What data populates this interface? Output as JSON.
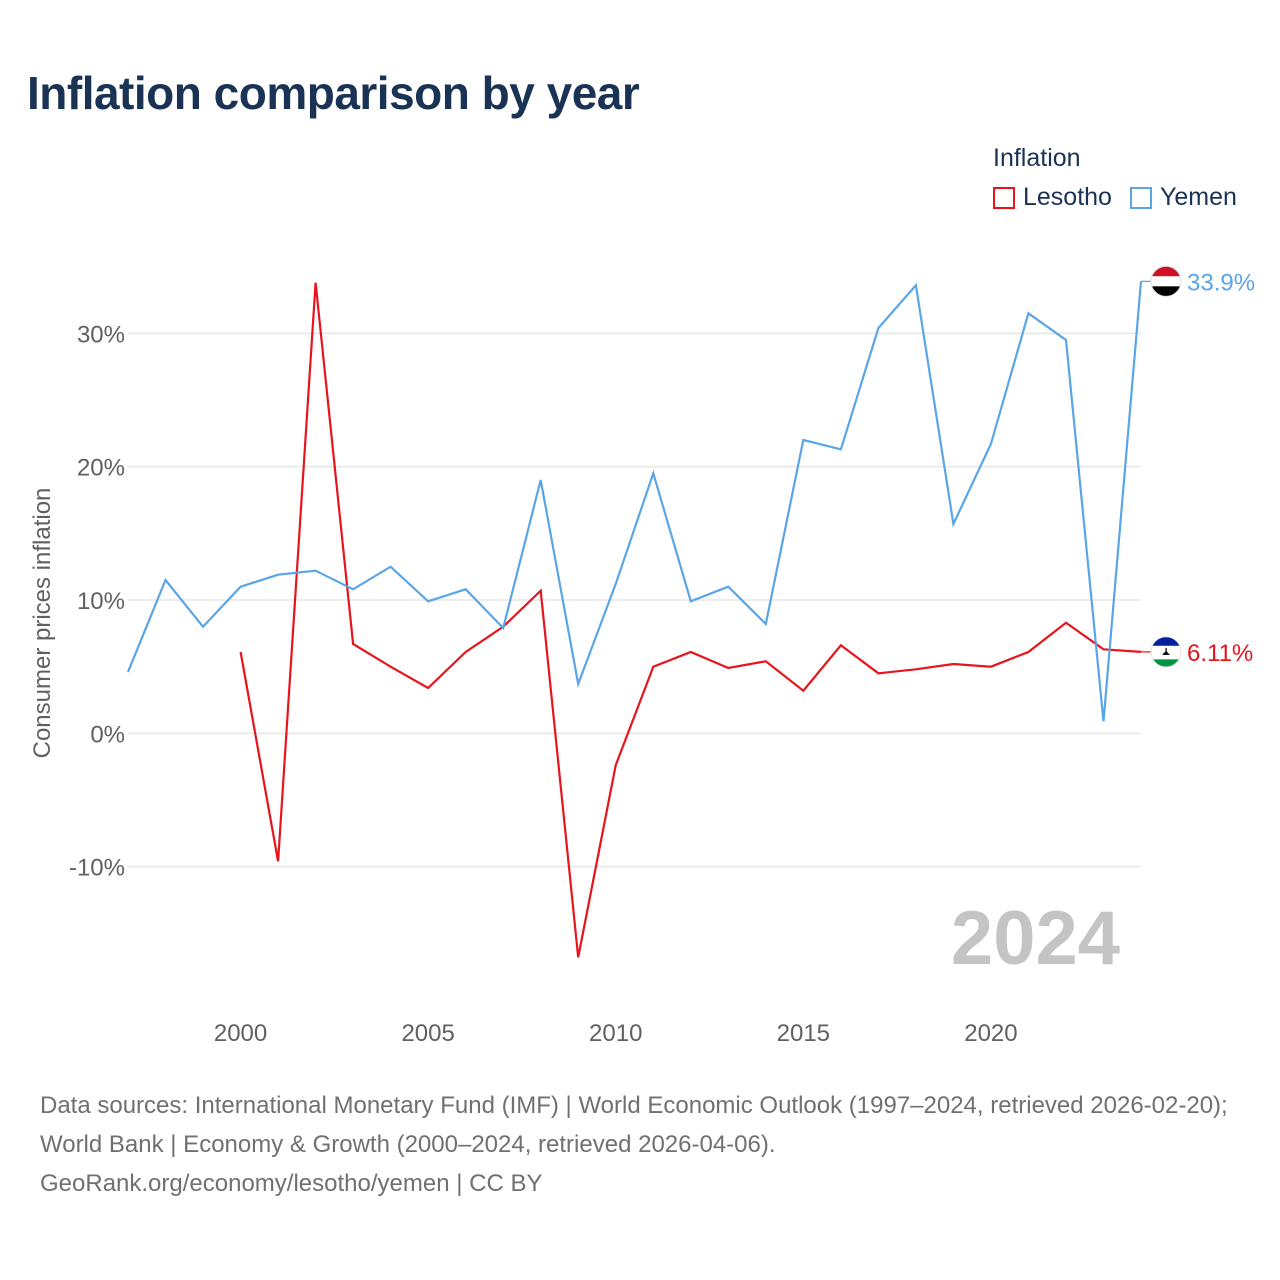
{
  "page": {
    "title": "Inflation comparison by year"
  },
  "legend": {
    "title": "Inflation",
    "items": [
      {
        "label": "Lesotho",
        "color": "#e8141c"
      },
      {
        "label": "Yemen",
        "color": "#5aa5e6"
      }
    ]
  },
  "chart_data": {
    "type": "line",
    "title": "Inflation comparison by year",
    "xlabel": "",
    "ylabel": "Consumer prices inflation",
    "xlim": [
      1997,
      2024
    ],
    "ylim": [
      -20,
      37
    ],
    "grid": true,
    "legend_position": "top-right",
    "x_ticks": [
      2000,
      2005,
      2010,
      2015,
      2020
    ],
    "x_tick_labels": [
      "2000",
      "2005",
      "2010",
      "2015",
      "2020"
    ],
    "y_ticks": [
      -10,
      0,
      10,
      20,
      30
    ],
    "y_tick_labels": [
      "-10%",
      "0%",
      "10%",
      "20%",
      "30%"
    ],
    "current_year_label": "2024",
    "series": [
      {
        "name": "Lesotho",
        "color": "#e8141c",
        "flag_icon": "lesotho-flag-icon",
        "end_label": "6.11%",
        "x": [
          2000,
          2001,
          2002,
          2003,
          2004,
          2005,
          2006,
          2007,
          2008,
          2009,
          2010,
          2011,
          2012,
          2013,
          2014,
          2015,
          2016,
          2017,
          2018,
          2019,
          2020,
          2021,
          2022,
          2023,
          2024
        ],
        "values": [
          6.1,
          -9.6,
          33.8,
          6.7,
          5.0,
          3.4,
          6.1,
          8.0,
          10.7,
          -16.8,
          -2.4,
          5.0,
          6.1,
          4.9,
          5.4,
          3.2,
          6.6,
          4.5,
          4.8,
          5.2,
          5.0,
          6.1,
          8.3,
          6.3,
          6.11
        ]
      },
      {
        "name": "Yemen",
        "color": "#5aa5e6",
        "flag_icon": "yemen-flag-icon",
        "end_label": "33.9%",
        "x": [
          1997,
          1998,
          1999,
          2000,
          2001,
          2002,
          2003,
          2004,
          2005,
          2006,
          2007,
          2008,
          2009,
          2010,
          2011,
          2012,
          2013,
          2014,
          2015,
          2016,
          2017,
          2018,
          2019,
          2020,
          2021,
          2022,
          2023,
          2024
        ],
        "values": [
          4.6,
          11.5,
          8.0,
          11.0,
          11.9,
          12.2,
          10.8,
          12.5,
          9.9,
          10.8,
          7.9,
          19.0,
          3.7,
          11.2,
          19.5,
          9.9,
          11.0,
          8.2,
          22.0,
          21.3,
          30.4,
          33.6,
          15.7,
          21.7,
          31.5,
          29.5,
          0.9,
          33.9
        ]
      }
    ]
  },
  "footer": {
    "sources": "Data sources: International Monetary Fund (IMF) | World Economic Outlook (1997–2024, retrieved 2026-02-20); World Bank | Economy & Growth (2000–2024, retrieved 2026-04-06).",
    "credit": "GeoRank.org/economy/lesotho/yemen | CC BY"
  }
}
